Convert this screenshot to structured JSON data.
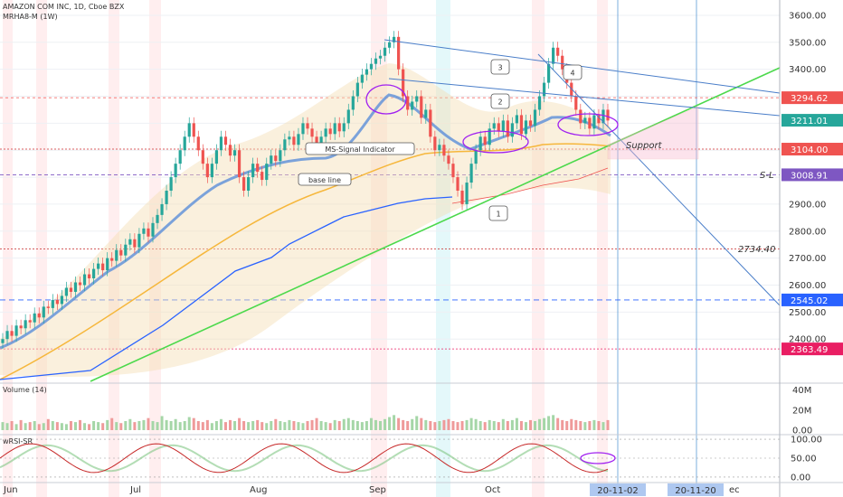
{
  "header": {
    "symbol_line": "AMAZON COM INC, 1D, Cboe BZX",
    "indicator_line": "MRHA8-M (1W)"
  },
  "chart_data": {
    "type": "candlestick",
    "y_ticks": [
      "3600.00",
      "3500.00",
      "3400.00",
      "3300.00",
      "3200.00",
      "3100.00",
      "3000.00",
      "2900.00",
      "2800.00",
      "2700.00",
      "2600.00",
      "2500.00",
      "2400.00"
    ],
    "ylim": [
      2250,
      3640
    ],
    "x_ticks": [
      "Jun",
      "Jul",
      "Aug",
      "Sep",
      "Oct",
      "ec"
    ],
    "x_tags": [
      "20-11-02",
      "20-11-20"
    ],
    "price_tags": [
      {
        "value": 3294.62,
        "text": "3294.62",
        "color": "#ef5350"
      },
      {
        "value": 3211.01,
        "text": "3211.01",
        "color": "#26a69a"
      },
      {
        "value": 3104.0,
        "text": "3104.00",
        "color": "#ef5350"
      },
      {
        "value": 3008.91,
        "text": "3008.91",
        "color": "#7e57c2"
      },
      {
        "value": 2545.02,
        "text": "2545.02",
        "color": "#2962ff"
      },
      {
        "value": 2363.49,
        "text": "2363.49",
        "color": "#e91e63"
      }
    ],
    "level_labels": [
      {
        "value": 3008.91,
        "text": "S-L"
      },
      {
        "value": 2734.4,
        "text": "2734.40"
      }
    ],
    "annotations": {
      "support": "Support",
      "ms_signal": "MS-Signal Indicator",
      "base_line": "base line",
      "wave_labels": [
        "1",
        "2",
        "3",
        "4"
      ]
    },
    "closes": [
      2400,
      2430,
      2412,
      2450,
      2440,
      2470,
      2462,
      2495,
      2480,
      2520,
      2515,
      2545,
      2530,
      2560,
      2590,
      2575,
      2610,
      2600,
      2640,
      2625,
      2660,
      2680,
      2655,
      2700,
      2690,
      2730,
      2710,
      2750,
      2770,
      2740,
      2790,
      2810,
      2780,
      2830,
      2860,
      2900,
      2950,
      3000,
      3050,
      3100,
      3150,
      3200,
      3150,
      3100,
      3050,
      3000,
      3050,
      3100,
      3150,
      3120,
      3080,
      3100,
      3000,
      2950,
      3000,
      3050,
      3020,
      2990,
      3050,
      3080,
      3060,
      3100,
      3140,
      3150,
      3120,
      3160,
      3200,
      3180,
      3150,
      3120,
      3150,
      3180,
      3160,
      3200,
      3170,
      3200,
      3250,
      3300,
      3350,
      3380,
      3400,
      3420,
      3440,
      3450,
      3480,
      3500,
      3520,
      3400,
      3300,
      3250,
      3280,
      3300,
      3220,
      3250,
      3150,
      3100,
      3120,
      3080,
      3050,
      3000,
      2950,
      2900,
      2980,
      3050,
      3100,
      3150,
      3120,
      3180,
      3200,
      3170,
      3210,
      3150,
      3200,
      3230,
      3160,
      3210,
      3190,
      3250,
      3300,
      3350,
      3420,
      3480,
      3450,
      3400,
      3350,
      3300,
      3250,
      3200,
      3220,
      3180,
      3230,
      3200,
      3250,
      3210
    ],
    "volume": {
      "label": "Volume (14)",
      "ticks": [
        "40M",
        "20M",
        "0.00"
      ],
      "ylim": [
        0,
        45
      ],
      "values": [
        8,
        7,
        9,
        6,
        10,
        7,
        8,
        9,
        6,
        7,
        11,
        9,
        8,
        7,
        6,
        9,
        8,
        10,
        7,
        6,
        9,
        8,
        7,
        10,
        12,
        8,
        7,
        9,
        11,
        8,
        9,
        10,
        12,
        9,
        8,
        14,
        10,
        9,
        11,
        8,
        9,
        13,
        12,
        9,
        8,
        10,
        7,
        9,
        11,
        8,
        10,
        9,
        12,
        9,
        8,
        9,
        10,
        8,
        7,
        9,
        11,
        9,
        8,
        10,
        9,
        8,
        7,
        9,
        10,
        12,
        9,
        8,
        7,
        10,
        9,
        11,
        12,
        10,
        9,
        8,
        9,
        12,
        10,
        9,
        11,
        13,
        15,
        12,
        10,
        9,
        11,
        14,
        12,
        10,
        9,
        8,
        9,
        10,
        11,
        9,
        8,
        9,
        10,
        12,
        11,
        9,
        8,
        10,
        9,
        8,
        11,
        9,
        10,
        12,
        9,
        8,
        10,
        9,
        11,
        12,
        14,
        15,
        12,
        10,
        9,
        11,
        10,
        9,
        8,
        9,
        10,
        9,
        8,
        10
      ]
    },
    "wrsi": {
      "label": "wRSI-SR",
      "ticks": [
        "100.00",
        "50.00",
        "0.00"
      ],
      "ylim": [
        -5,
        105
      ]
    }
  }
}
